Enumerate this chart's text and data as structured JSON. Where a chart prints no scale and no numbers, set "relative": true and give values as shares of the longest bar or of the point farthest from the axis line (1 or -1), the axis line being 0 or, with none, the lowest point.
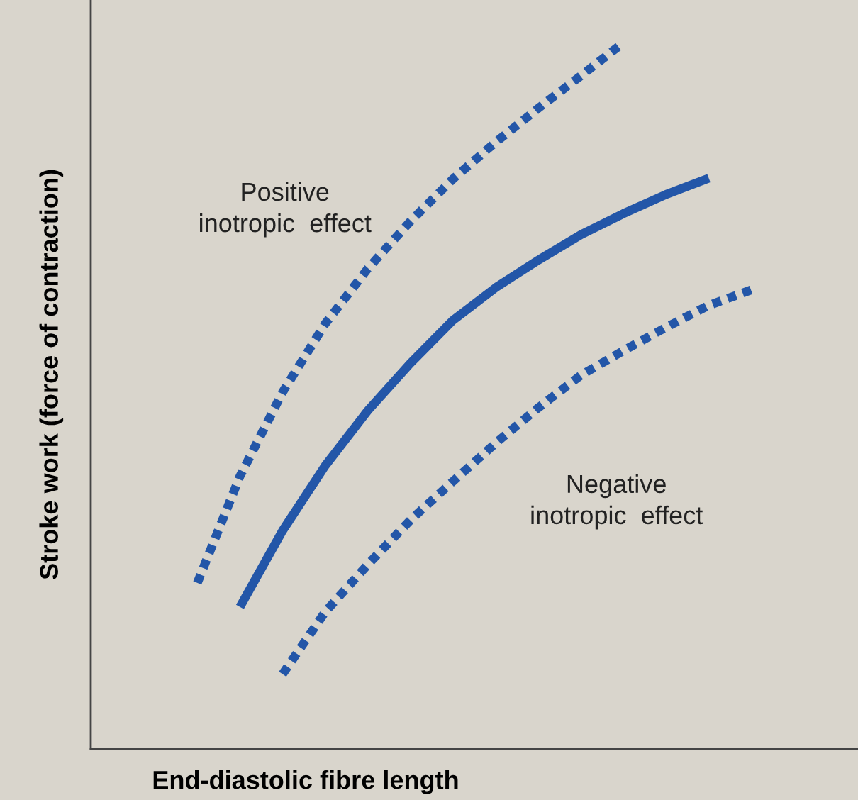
{
  "chart_data": {
    "type": "line",
    "relative": true,
    "xlabel": "End-diastolic fibre length",
    "ylabel": "Stroke work (force of contraction)",
    "categories": [
      null,
      null,
      null,
      null,
      null,
      null,
      null,
      null,
      null,
      null,
      null,
      null,
      null,
      null,
      null,
      null,
      null,
      null
    ],
    "series": [
      {
        "values": [
          null,
          null,
          0.235,
          0.386,
          0.505,
          0.602,
          0.68,
          0.747,
          0.807,
          0.859,
          0.907,
          0.953,
          1.0,
          null,
          null,
          null,
          null,
          null
        ],
        "color": "#2356a8",
        "line_style": "dotted"
      },
      {
        "values": [
          null,
          null,
          null,
          0.201,
          0.309,
          0.401,
          0.479,
          0.546,
          0.607,
          0.653,
          0.692,
          0.728,
          0.758,
          0.785,
          0.808,
          null,
          null,
          null
        ],
        "color": "#2356a8",
        "line_style": "solid"
      },
      {
        "values": [
          null,
          null,
          null,
          null,
          0.106,
          0.194,
          0.261,
          0.324,
          0.379,
          0.433,
          0.483,
          0.529,
          0.564,
          0.597,
          0.628,
          0.65,
          null,
          null
        ],
        "color": "#2356a8",
        "line_style": "dotted"
      }
    ],
    "annotations": [
      "Positive\ninotropic  effect",
      "Negative\ninotropic  effect"
    ],
    "marker": "none"
  }
}
